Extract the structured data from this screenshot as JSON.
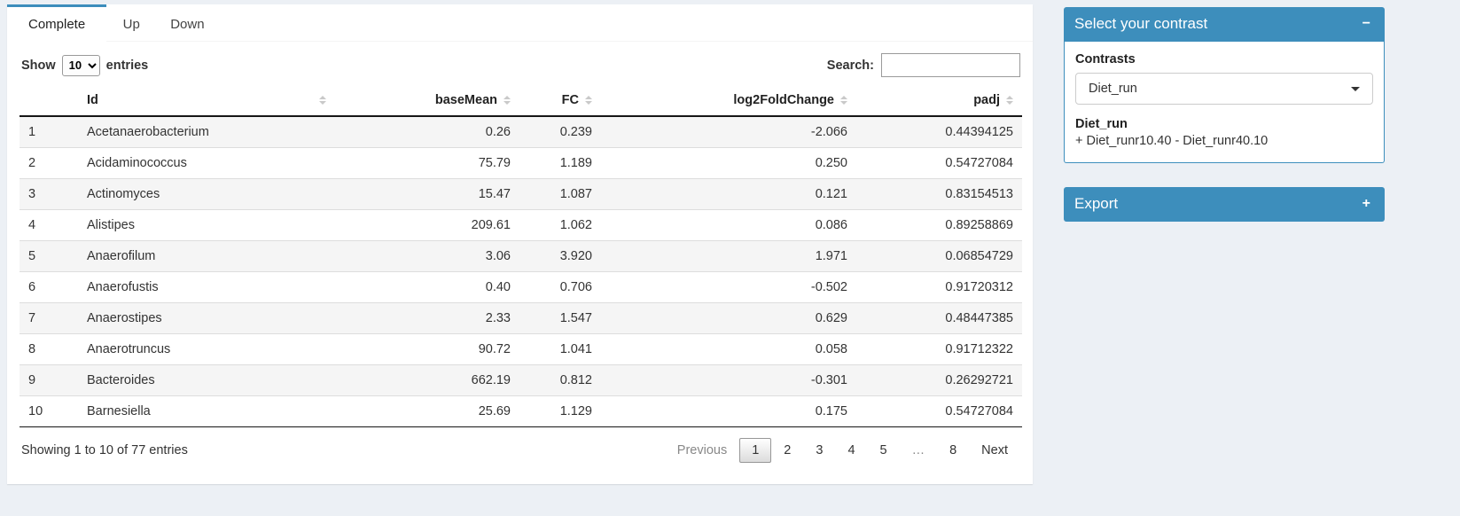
{
  "tabs": [
    {
      "label": "Complete",
      "active": true
    },
    {
      "label": "Up",
      "active": false
    },
    {
      "label": "Down",
      "active": false
    }
  ],
  "table_controls": {
    "show_label": "Show",
    "entries_label": "entries",
    "page_length": "10",
    "search_label": "Search:",
    "search_value": ""
  },
  "table": {
    "columns": [
      "",
      "Id",
      "baseMean",
      "FC",
      "log2FoldChange",
      "padj"
    ],
    "rows": [
      {
        "num": "1",
        "id": "Acetanaerobacterium",
        "baseMean": "0.26",
        "fc": "0.239",
        "log2fc": "-2.066",
        "padj": "0.44394125"
      },
      {
        "num": "2",
        "id": "Acidaminococcus",
        "baseMean": "75.79",
        "fc": "1.189",
        "log2fc": "0.250",
        "padj": "0.54727084"
      },
      {
        "num": "3",
        "id": "Actinomyces",
        "baseMean": "15.47",
        "fc": "1.087",
        "log2fc": "0.121",
        "padj": "0.83154513"
      },
      {
        "num": "4",
        "id": "Alistipes",
        "baseMean": "209.61",
        "fc": "1.062",
        "log2fc": "0.086",
        "padj": "0.89258869"
      },
      {
        "num": "5",
        "id": "Anaerofilum",
        "baseMean": "3.06",
        "fc": "3.920",
        "log2fc": "1.971",
        "padj": "0.06854729"
      },
      {
        "num": "6",
        "id": "Anaerofustis",
        "baseMean": "0.40",
        "fc": "0.706",
        "log2fc": "-0.502",
        "padj": "0.91720312"
      },
      {
        "num": "7",
        "id": "Anaerostipes",
        "baseMean": "2.33",
        "fc": "1.547",
        "log2fc": "0.629",
        "padj": "0.48447385"
      },
      {
        "num": "8",
        "id": "Anaerotruncus",
        "baseMean": "90.72",
        "fc": "1.041",
        "log2fc": "0.058",
        "padj": "0.91712322"
      },
      {
        "num": "9",
        "id": "Bacteroides",
        "baseMean": "662.19",
        "fc": "0.812",
        "log2fc": "-0.301",
        "padj": "0.26292721"
      },
      {
        "num": "10",
        "id": "Barnesiella",
        "baseMean": "25.69",
        "fc": "1.129",
        "log2fc": "0.175",
        "padj": "0.54727084"
      }
    ]
  },
  "footer": {
    "info": "Showing 1 to 10 of 77 entries",
    "pagination": {
      "previous": "Previous",
      "pages": [
        "1",
        "2",
        "3",
        "4",
        "5"
      ],
      "ellipsis": "…",
      "last_page": "8",
      "next": "Next",
      "active_page": "1"
    }
  },
  "contrast_box": {
    "title": "Select your contrast",
    "collapse_icon": "−",
    "contrasts_label": "Contrasts",
    "selected_contrast": "Diet_run",
    "contrast_name": "Diet_run",
    "contrast_formula": "+ Diet_runr10.40 - Diet_runr40.10"
  },
  "export_box": {
    "title": "Export",
    "expand_icon": "+"
  },
  "colors": {
    "primary": "#3d8ebc",
    "stripe": "#f5f5f5"
  }
}
